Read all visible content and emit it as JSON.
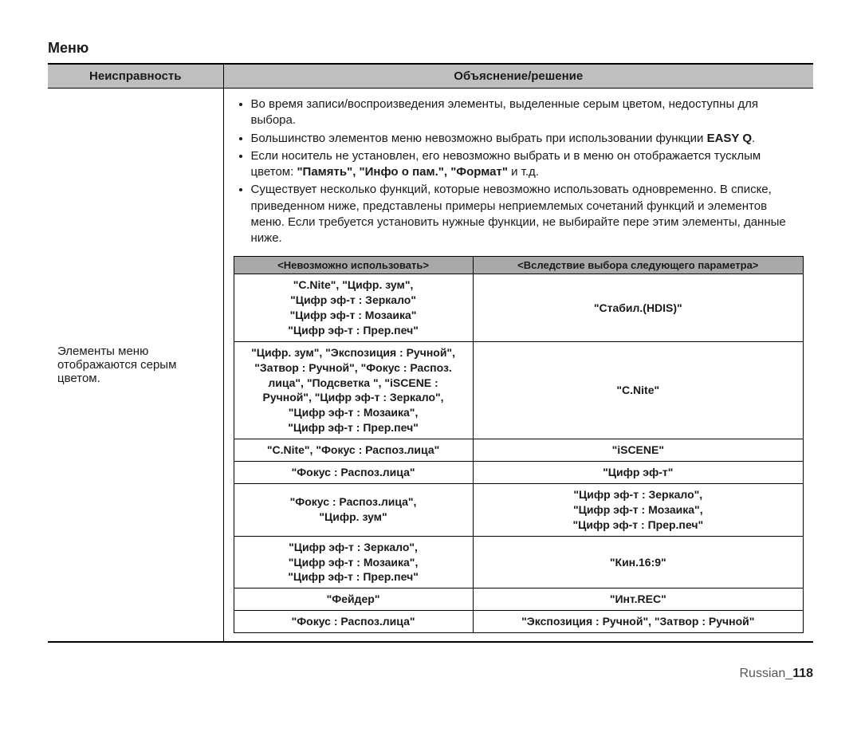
{
  "title": "Меню",
  "header": {
    "col1": "Неисправность",
    "col2": "Объяснение/решение"
  },
  "issue": "Элементы меню отображаются серым цветом.",
  "bullets": [
    {
      "text": "Во время записи/воспроизведения элементы, выделенные серым цветом, недоступны для выбора."
    },
    {
      "prefix": "Большинство элементов меню невозможно выбрать при использовании функции ",
      "bold": "EASY Q",
      "suffix": "."
    },
    {
      "prefix": "Если носитель не установлен, его невозможно выбрать и в меню он отображается тусклым цветом: ",
      "bold": "\"Память\", \"Инфо о пам.\", \"Формат\"",
      "suffix": " и т.д."
    },
    {
      "text": "Существует несколько функций, которые невозможно использовать одновременно. В списке, приведенном ниже, представлены примеры неприемлемых сочетаний функций и элементов меню. Если требуется установить нужные функции, не выбирайте пере этим элементы, данные ниже."
    }
  ],
  "inner_header": {
    "left": "<Невозможно использовать>",
    "right": "<Вследствие выбора следующего параметра>"
  },
  "rows": [
    {
      "left": "\"C.Nite\", \"Цифр. зум\",\n\"Цифр эф-т : Зеркало\"\n\"Цифр эф-т : Мозаика\"\n\"Цифр эф-т : Прер.печ\"",
      "right": "\"Стабил.(HDIS)\""
    },
    {
      "left": "\"Цифр. зум\", \"Экспозиция : Ручной\",\n\"Затвор : Ручной\", \"Фокус : Распоз.\nлица\", \"Подсветка \", \"iSCENE :\nРучной\", \"Цифр эф-т : Зеркало\",\n\"Цифр эф-т : Мозаика\",\n\"Цифр эф-т : Прер.печ\"",
      "right": "\"C.Nite\""
    },
    {
      "left": "\"C.Nite\", \"Фокус : Распоз.лица\"",
      "right": "\"iSCENE\""
    },
    {
      "left": "\"Фокус : Распоз.лица\"",
      "right": "\"Цифр эф-т\""
    },
    {
      "left": "\"Фокус : Распоз.лица\",\n\"Цифр. зум\"",
      "right": "\"Цифр эф-т : Зеркало\",\n\"Цифр эф-т : Мозаика\",\n\"Цифр эф-т : Прер.печ\""
    },
    {
      "left": "\"Цифр эф-т : Зеркало\",\n\"Цифр эф-т : Мозаика\",\n\"Цифр эф-т : Прер.печ\"",
      "right": "\"Кин.16:9\""
    },
    {
      "left": "\"Фейдер\"",
      "right": "\"Инт.REC\""
    },
    {
      "left": "\"Фокус : Распоз.лица\"",
      "right": "\"Экспозиция : Ручной\", \"Затвор : Ручной\""
    }
  ],
  "footer": {
    "lang": "Russian_",
    "page": "118"
  }
}
